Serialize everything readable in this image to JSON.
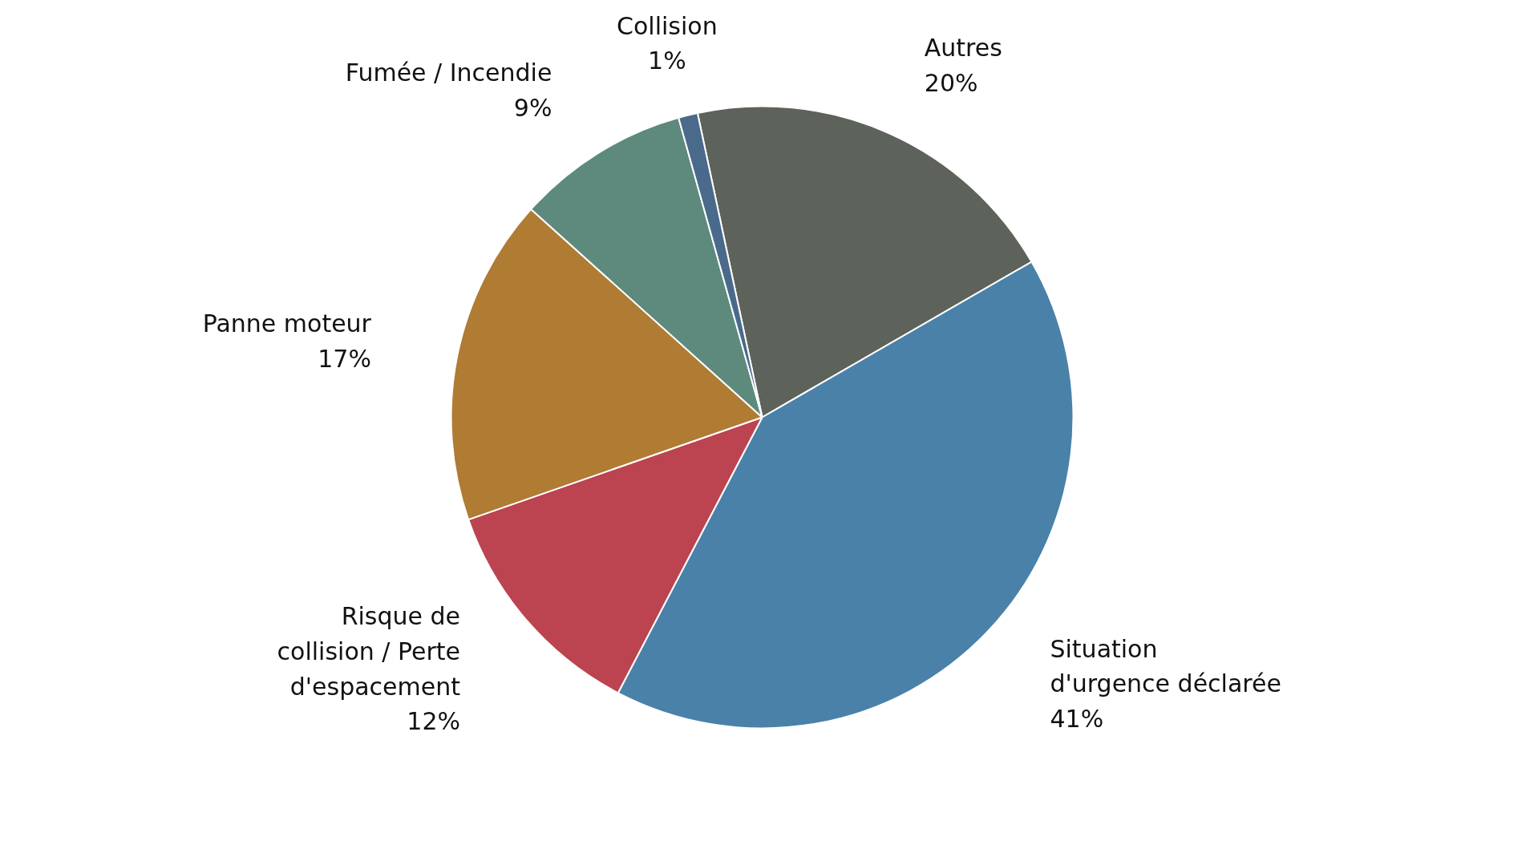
{
  "chart_data": {
    "type": "pie",
    "categories": [
      "Autres",
      "Situation d'urgence déclarée",
      "Risque de collision / Perte d'espacement",
      "Panne moteur",
      "Fumée / Incendie",
      "Collision"
    ],
    "values": [
      20,
      41,
      12,
      17,
      9,
      1
    ],
    "value_labels": [
      "20%",
      "41%",
      "12%",
      "17%",
      "9%",
      "1%"
    ],
    "colors": [
      "#5d625b",
      "#4a81a8",
      "#bc4350",
      "#b07b33",
      "#5e8a7e",
      "#4a6a8c"
    ]
  }
}
